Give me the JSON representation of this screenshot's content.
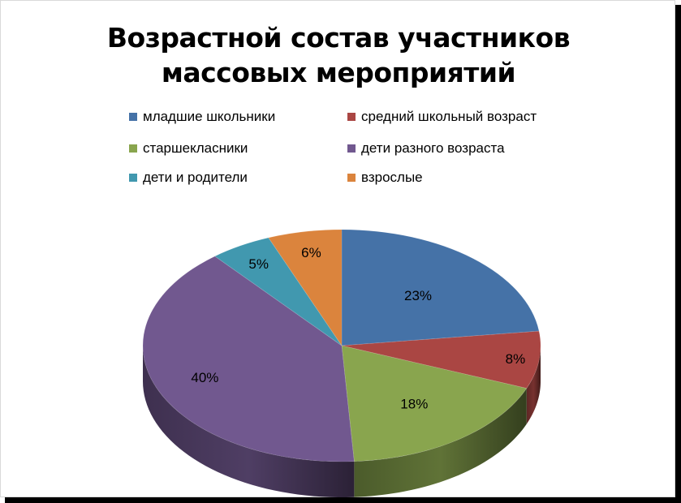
{
  "chart_data": {
    "type": "pie",
    "style": "3d",
    "title": "Возрастной состав участников массовых мероприятий",
    "title_lines": [
      "Возрастной состав участников",
      "массовых мероприятий"
    ],
    "legend_position": "top",
    "slices": [
      {
        "label": "младшие школьники",
        "value": 23,
        "display": "23%",
        "color": "#4572A7"
      },
      {
        "label": "средний школьный возраст",
        "value": 8,
        "display": "8%",
        "color": "#AA4643"
      },
      {
        "label": "старшекласники",
        "value": 18,
        "display": "18%",
        "color": "#89A54E"
      },
      {
        "label": "дети разного возраста",
        "value": 40,
        "display": "40%",
        "color": "#71588F"
      },
      {
        "label": "дети и родители",
        "value": 5,
        "display": "5%",
        "color": "#4198AF"
      },
      {
        "label": "взрослые",
        "value": 6,
        "display": "6%",
        "color": "#DB843D"
      }
    ]
  }
}
